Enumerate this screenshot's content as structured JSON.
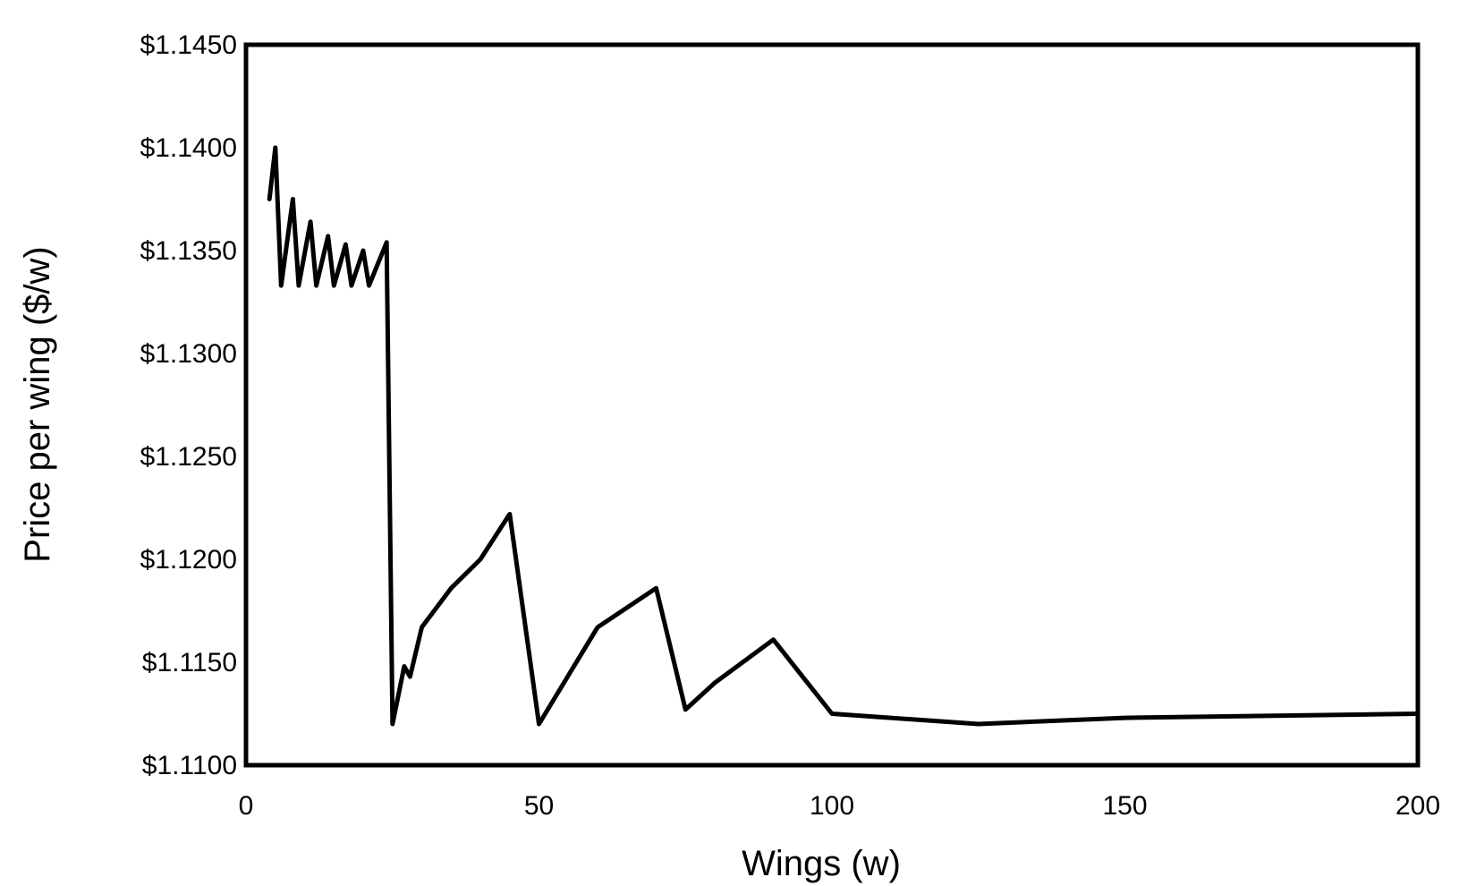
{
  "chart_data": {
    "type": "line",
    "xlabel": "Wings (w)",
    "ylabel": "Price per wing ($/w)",
    "xlim": [
      0,
      200
    ],
    "ylim": [
      1.11,
      1.145
    ],
    "x_ticks": [
      0,
      50,
      100,
      150,
      200
    ],
    "x_tick_labels": [
      "0",
      "50",
      "100",
      "150",
      "200"
    ],
    "y_ticks": [
      1.11,
      1.115,
      1.12,
      1.125,
      1.13,
      1.135,
      1.14,
      1.145
    ],
    "y_tick_labels": [
      "$1.1100",
      "$1.1150",
      "$1.1200",
      "$1.1250",
      "$1.1300",
      "$1.1350",
      "$1.1400",
      "$1.1450"
    ],
    "grid": false,
    "legend": "none",
    "line_color": "#000000",
    "series": [
      {
        "x": [
          4,
          5,
          6,
          8,
          9,
          11,
          12,
          14,
          15,
          17,
          18,
          20,
          21,
          24,
          25,
          27,
          28,
          30,
          35,
          40,
          45,
          50,
          60,
          70,
          75,
          80,
          90,
          100,
          125,
          150,
          200
        ],
        "values": [
          1.1375,
          1.14,
          1.1333,
          1.1375,
          1.1333,
          1.1364,
          1.1333,
          1.1357,
          1.1333,
          1.1353,
          1.1333,
          1.135,
          1.1333,
          1.1354,
          1.112,
          1.1148,
          1.1143,
          1.1167,
          1.1186,
          1.12,
          1.1222,
          1.112,
          1.1167,
          1.1186,
          1.1127,
          1.114,
          1.1161,
          1.1125,
          1.112,
          1.1123,
          1.1125
        ]
      }
    ]
  }
}
